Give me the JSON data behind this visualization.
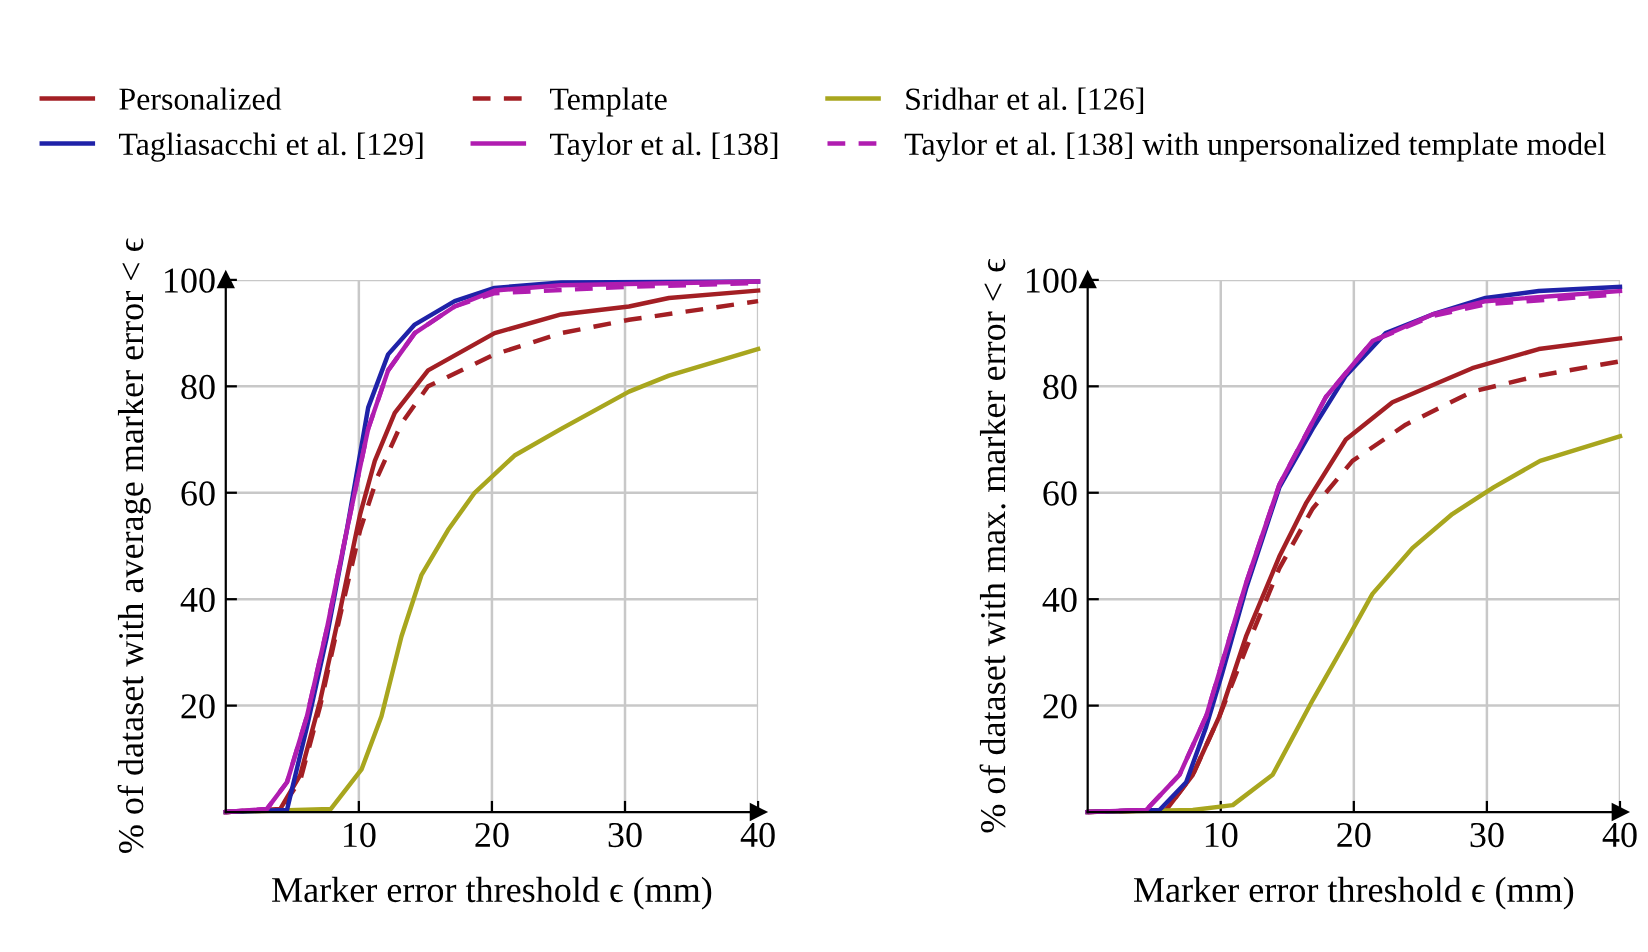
{
  "chart_data": [
    {
      "type": "line",
      "xlabel": "Marker error threshold ϵ (mm)",
      "ylabel": "% of dataset with average marker error < ϵ",
      "xlim": [
        0,
        40
      ],
      "ylim": [
        0,
        100
      ],
      "xticks": [
        10,
        20,
        30,
        40
      ],
      "yticks": [
        20,
        40,
        60,
        80,
        100
      ],
      "grid": true,
      "legend": "top",
      "series": [
        {
          "name": "Personalized",
          "color": "#a31f24",
          "line_style": "solid",
          "x": [
            0,
            4.1,
            5.6,
            7.1,
            8.6,
            10.1,
            11.2,
            12.7,
            15.2,
            20.2,
            25.2,
            30.3,
            33.3,
            40
          ],
          "values": [
            0,
            0.6,
            7,
            21,
            38,
            56,
            66,
            75,
            83,
            90,
            93.5,
            95,
            96.6,
            98
          ]
        },
        {
          "name": "Template",
          "color": "#a31f24",
          "line_style": "dashed",
          "x": [
            0,
            4.1,
            5.6,
            7.1,
            8.6,
            10.1,
            11.4,
            13.2,
            15.2,
            20.2,
            25.2,
            30.3,
            40
          ],
          "values": [
            0,
            0.4,
            6,
            20,
            37,
            53,
            63,
            73,
            80,
            86,
            90,
            92.5,
            96
          ]
        },
        {
          "name": "Sridhar et al. [126]",
          "color": "#a8a61e",
          "line_style": "solid",
          "x": [
            0,
            7.9,
            10.2,
            11.7,
            13.2,
            14.7,
            16.7,
            18.7,
            21.7,
            25.2,
            30.3,
            33.3,
            40
          ],
          "values": [
            0,
            0.6,
            8,
            18,
            33,
            44.5,
            53,
            60,
            67,
            72,
            79,
            82,
            87
          ]
        },
        {
          "name": "Tagliasacchi et al. [129]",
          "color": "#1f22a8",
          "line_style": "solid",
          "x": [
            0,
            4.6,
            6.1,
            7.6,
            9.1,
            10.7,
            12.2,
            14.2,
            17.2,
            20.2,
            25.2,
            40
          ],
          "values": [
            0,
            0.4,
            16,
            33,
            53,
            76,
            86,
            91.6,
            96,
            98.5,
            99.5,
            99.7
          ]
        },
        {
          "name": "Taylor et al. [138]",
          "color": "#b01db0",
          "line_style": "solid",
          "x": [
            0,
            3.1,
            4.6,
            6.1,
            7.6,
            9.1,
            10.7,
            12.2,
            14.2,
            17.2,
            20.2,
            25.2,
            40
          ],
          "values": [
            0,
            0.6,
            5.6,
            18,
            34.5,
            53,
            72,
            83,
            90,
            95,
            98,
            99,
            99.7
          ]
        },
        {
          "name": "Taylor et al. [138] with unpersonalized template model",
          "color": "#b01db0",
          "line_style": "dashed",
          "x": [
            0,
            3.1,
            4.6,
            6.1,
            7.6,
            9.1,
            10.7,
            12.2,
            14.2,
            17.2,
            20.2,
            30.3,
            40
          ],
          "values": [
            0,
            0.6,
            5.6,
            18,
            34.5,
            53,
            72,
            83,
            90,
            95,
            97.5,
            98.7,
            99.4
          ]
        }
      ]
    },
    {
      "type": "line",
      "xlabel": "Marker error threshold ϵ (mm)",
      "ylabel": "% of dataset with max. marker error < ϵ",
      "xlim": [
        0,
        40
      ],
      "ylim": [
        0,
        100
      ],
      "xticks": [
        10,
        20,
        30,
        40
      ],
      "yticks": [
        20,
        40,
        60,
        80,
        100
      ],
      "grid": true,
      "series": [
        {
          "color": "#a31f24",
          "line_style": "solid",
          "x": [
            0,
            5.9,
            7.9,
            9.9,
            11.9,
            14.4,
            16.4,
            19.4,
            22.9,
            28.9,
            33.9,
            40
          ],
          "values": [
            0,
            0.4,
            7,
            18,
            33,
            48,
            58,
            70,
            77,
            83.4,
            87,
            89
          ]
        },
        {
          "color": "#a31f24",
          "line_style": "dashed",
          "x": [
            0,
            5.9,
            7.9,
            9.9,
            11.9,
            14.4,
            16.9,
            19.9,
            23.9,
            28.9,
            33.9,
            40
          ],
          "values": [
            0,
            0.4,
            7,
            18,
            30.7,
            45.8,
            57,
            66,
            72.8,
            79,
            82,
            84.7
          ]
        },
        {
          "color": "#a8a61e",
          "line_style": "solid",
          "x": [
            0,
            7.9,
            10.9,
            13.9,
            16.9,
            19.4,
            21.4,
            24.4,
            27.4,
            30.5,
            34,
            40
          ],
          "values": [
            0,
            0.4,
            1.3,
            7,
            21,
            32,
            41,
            49.6,
            56,
            61,
            66,
            70.6
          ]
        },
        {
          "color": "#1f22a8",
          "line_style": "solid",
          "x": [
            0,
            5.4,
            7.4,
            8.9,
            10.1,
            11.9,
            14.4,
            16.9,
            19.4,
            22.4,
            25.9,
            29.9,
            33.9,
            40
          ],
          "values": [
            0,
            0.4,
            5.6,
            16,
            26,
            42,
            61,
            72,
            82,
            90,
            93.5,
            96.6,
            97.9,
            98.7
          ]
        },
        {
          "color": "#b01db0",
          "line_style": "solid",
          "x": [
            0,
            4.4,
            6.9,
            8.9,
            10.1,
            11.9,
            14.4,
            17.9,
            21.4,
            25.9,
            29.9,
            40
          ],
          "values": [
            0,
            0.4,
            7,
            18,
            28,
            43,
            61.5,
            78,
            88.5,
            93.5,
            96,
            97.9
          ]
        },
        {
          "color": "#b01db0",
          "line_style": "dashed",
          "x": [
            0,
            4.4,
            6.9,
            8.9,
            10.1,
            11.9,
            14.4,
            17.9,
            21.4,
            25.9,
            29.9,
            40
          ],
          "values": [
            0,
            0.4,
            7,
            18,
            28,
            43,
            61.5,
            78,
            88.5,
            93.2,
            95.4,
            97.3
          ]
        }
      ]
    }
  ]
}
